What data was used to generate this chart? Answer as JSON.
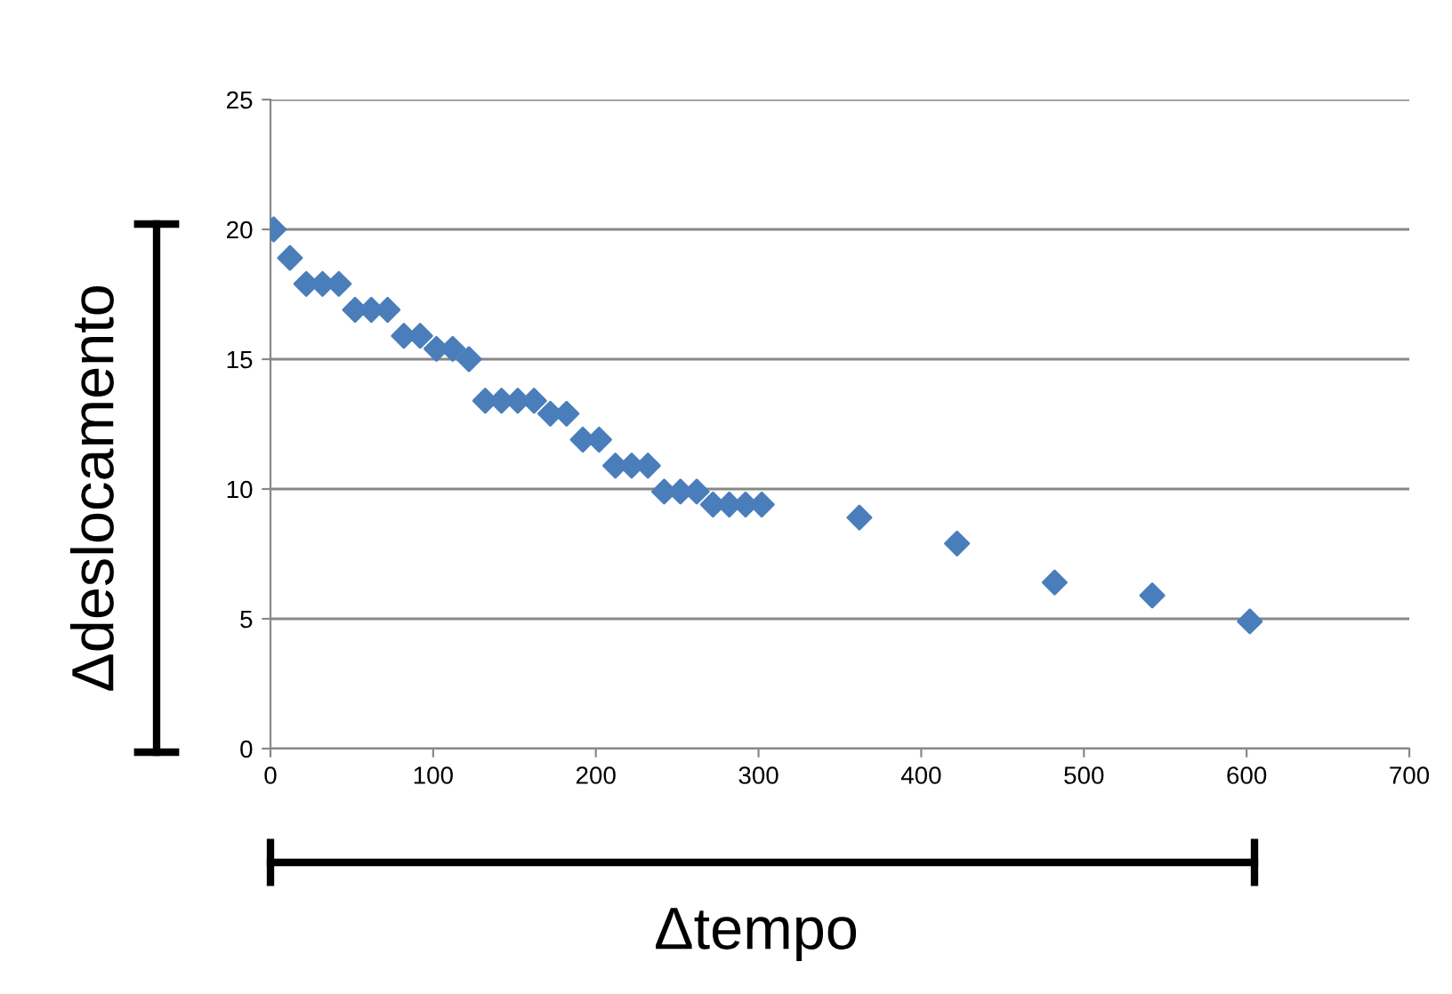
{
  "chart_data": {
    "type": "scatter",
    "xlabel": "Δtempo",
    "ylabel": "Δdeslocamento",
    "x": [
      2,
      12,
      22,
      32,
      42,
      52,
      62,
      72,
      82,
      92,
      102,
      112,
      122,
      132,
      142,
      152,
      162,
      172,
      182,
      192,
      202,
      212,
      222,
      232,
      242,
      252,
      262,
      272,
      282,
      292,
      302,
      362,
      422,
      482,
      542,
      602
    ],
    "series": [
      {
        "color": "#4a7ebb",
        "values": [
          20,
          18.9,
          17.9,
          17.9,
          17.9,
          16.9,
          16.9,
          16.9,
          15.9,
          15.9,
          15.4,
          15.4,
          15.0,
          13.4,
          13.4,
          13.4,
          13.4,
          12.9,
          12.9,
          11.9,
          11.9,
          10.9,
          10.9,
          10.9,
          9.9,
          9.9,
          9.9,
          9.4,
          9.4,
          9.4,
          9.4,
          8.9,
          7.9,
          6.4,
          5.9,
          4.9
        ]
      }
    ],
    "marker": "diamond",
    "xlim": [
      0,
      700
    ],
    "xticks": [
      0,
      100,
      200,
      300,
      400,
      500,
      600,
      700
    ],
    "ylim": [
      0,
      25
    ],
    "yticks": [
      0,
      5,
      10,
      15,
      20,
      25
    ],
    "grid": "y",
    "legend": false
  }
}
